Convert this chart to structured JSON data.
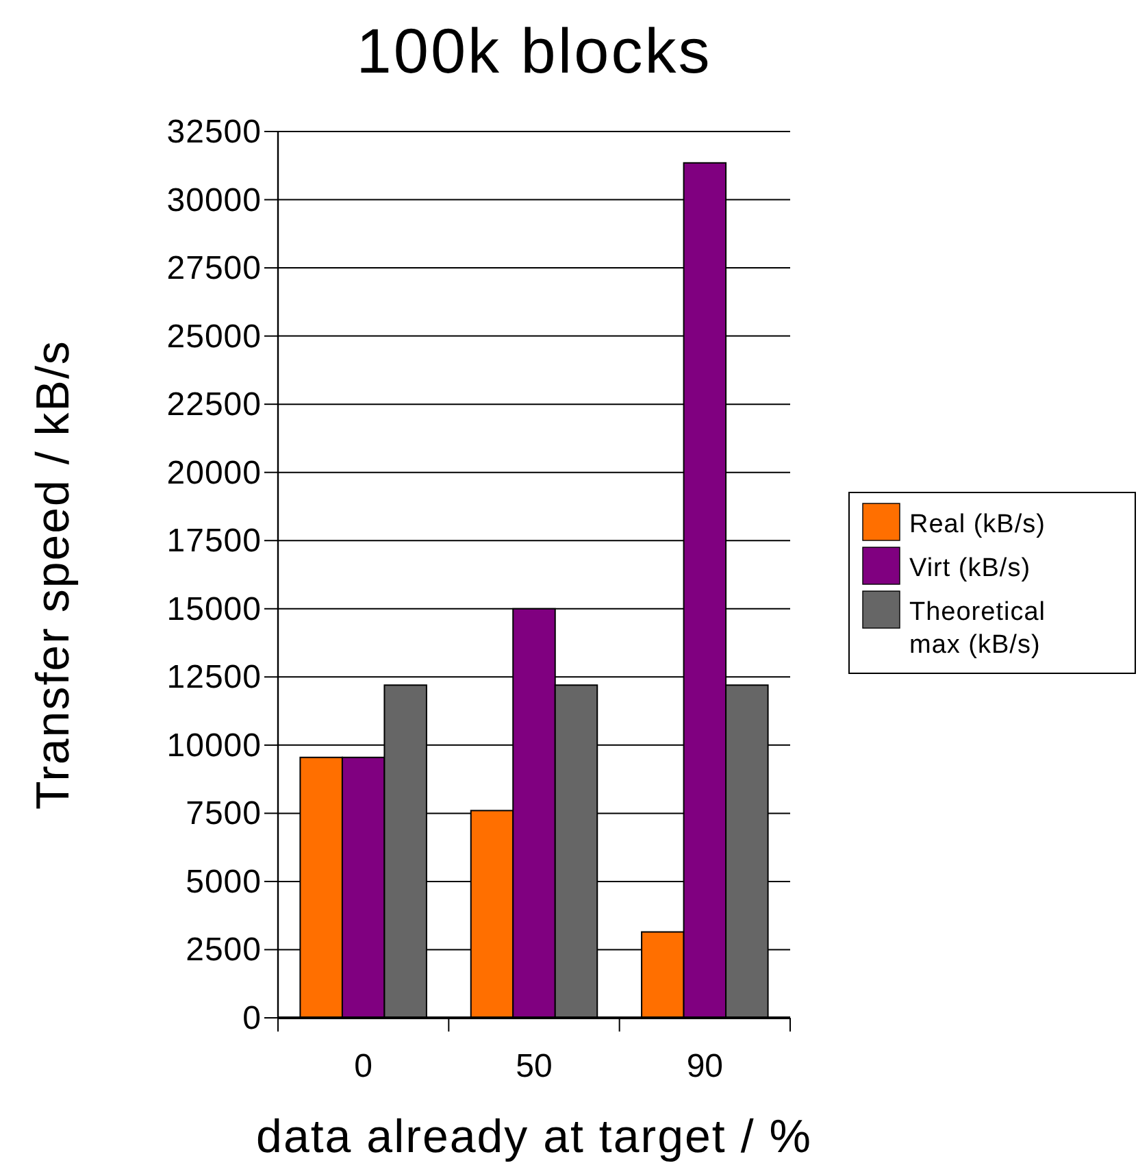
{
  "chart_data": {
    "type": "bar",
    "title": "100k blocks",
    "xlabel": "data already at target / %",
    "ylabel": "Transfer speed / kB/s",
    "categories": [
      "0",
      "50",
      "90"
    ],
    "series": [
      {
        "name": "Real (kB/s)",
        "color": "#ff6f00",
        "values": [
          9550,
          7600,
          3150
        ]
      },
      {
        "name": "Virt (kB/s)",
        "color": "#800080",
        "values": [
          9550,
          15000,
          31350
        ]
      },
      {
        "name": "Theoretical max (kB/s)",
        "color": "#666666",
        "values": [
          12200,
          12200,
          12200
        ]
      }
    ],
    "ylim": [
      0,
      32500
    ],
    "yticks": [
      0,
      2500,
      5000,
      7500,
      10000,
      12500,
      15000,
      17500,
      20000,
      22500,
      25000,
      27500,
      30000,
      32500
    ],
    "grid": "y",
    "legend": "right"
  }
}
